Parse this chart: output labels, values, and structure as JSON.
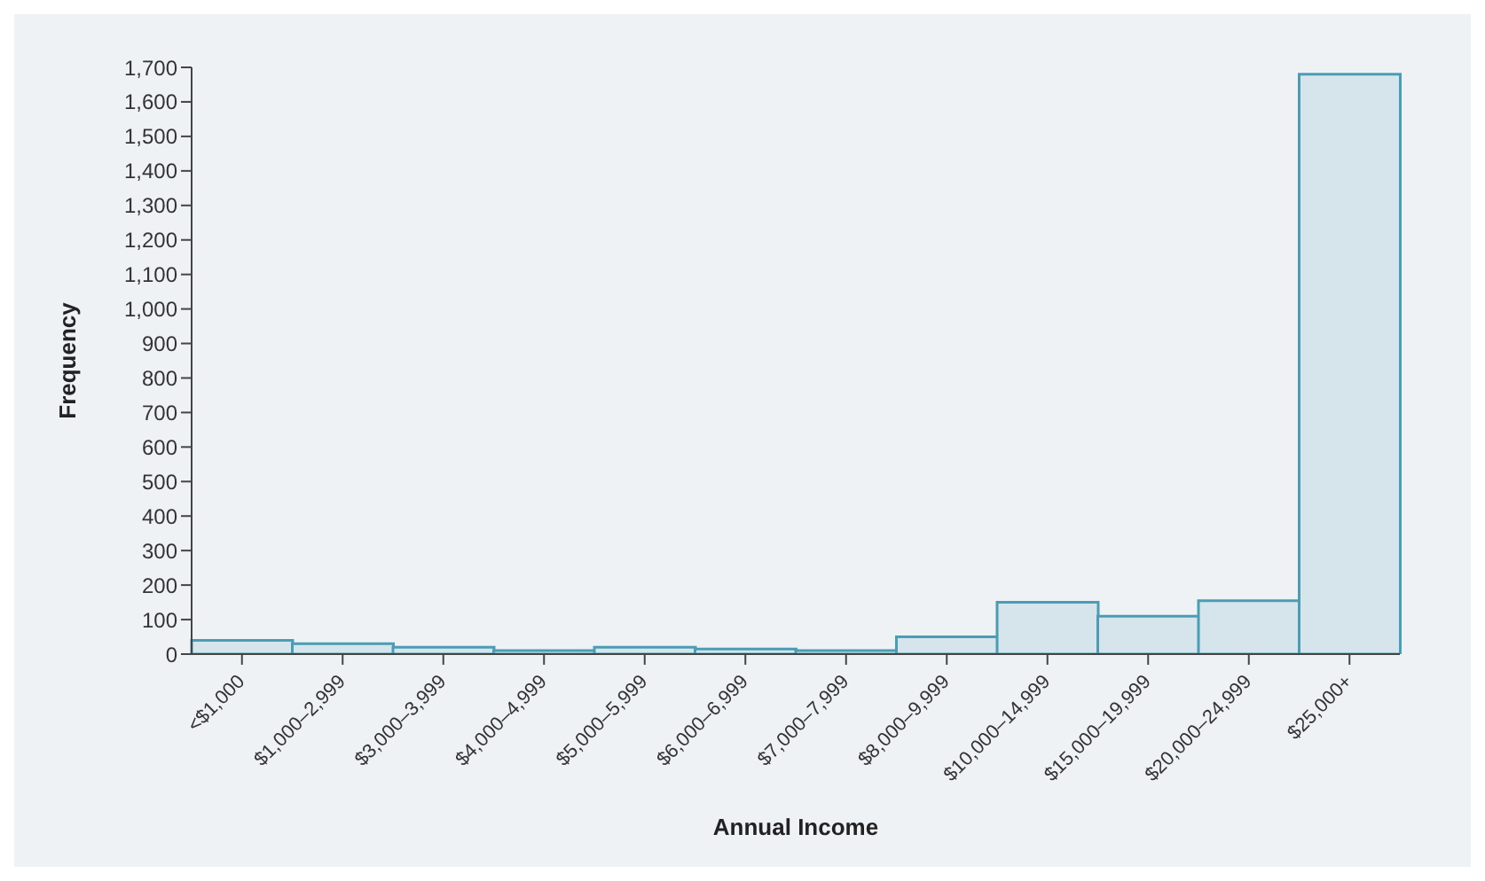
{
  "chart_data": {
    "type": "bar",
    "xlabel": "Annual Income",
    "ylabel": "Frequency",
    "categories": [
      "<$1,000",
      "$1,000–2,999",
      "$3,000–3,999",
      "$4,000–4,999",
      "$5,000–5,999",
      "$6,000–6,999",
      "$7,000–7,999",
      "$8,000–9,999",
      "$10,000–14,999",
      "$15,000–19,999",
      "$20,000–24,999",
      "$25,000+"
    ],
    "values": [
      40,
      30,
      20,
      10,
      20,
      15,
      10,
      50,
      150,
      110,
      155,
      1680
    ],
    "color": "#d6e5eb",
    "ylim": [
      0,
      1700
    ],
    "yticks": [
      {
        "value": 0,
        "label": "0"
      },
      {
        "value": 100,
        "label": "100"
      },
      {
        "value": 200,
        "label": "200"
      },
      {
        "value": 300,
        "label": "300"
      },
      {
        "value": 400,
        "label": "400"
      },
      {
        "value": 500,
        "label": "500"
      },
      {
        "value": 600,
        "label": "600"
      },
      {
        "value": 700,
        "label": "700"
      },
      {
        "value": 800,
        "label": "800"
      },
      {
        "value": 900,
        "label": "900"
      },
      {
        "value": 1000,
        "label": "1,000"
      },
      {
        "value": 1100,
        "label": "1,100"
      },
      {
        "value": 1200,
        "label": "1,200"
      },
      {
        "value": 1300,
        "label": "1,300"
      },
      {
        "value": 1400,
        "label": "1,400"
      },
      {
        "value": 1500,
        "label": "1,500"
      },
      {
        "value": 1600,
        "label": "1,600"
      },
      {
        "value": 1700,
        "label": "1,700"
      }
    ],
    "grid": false,
    "legend": false
  }
}
